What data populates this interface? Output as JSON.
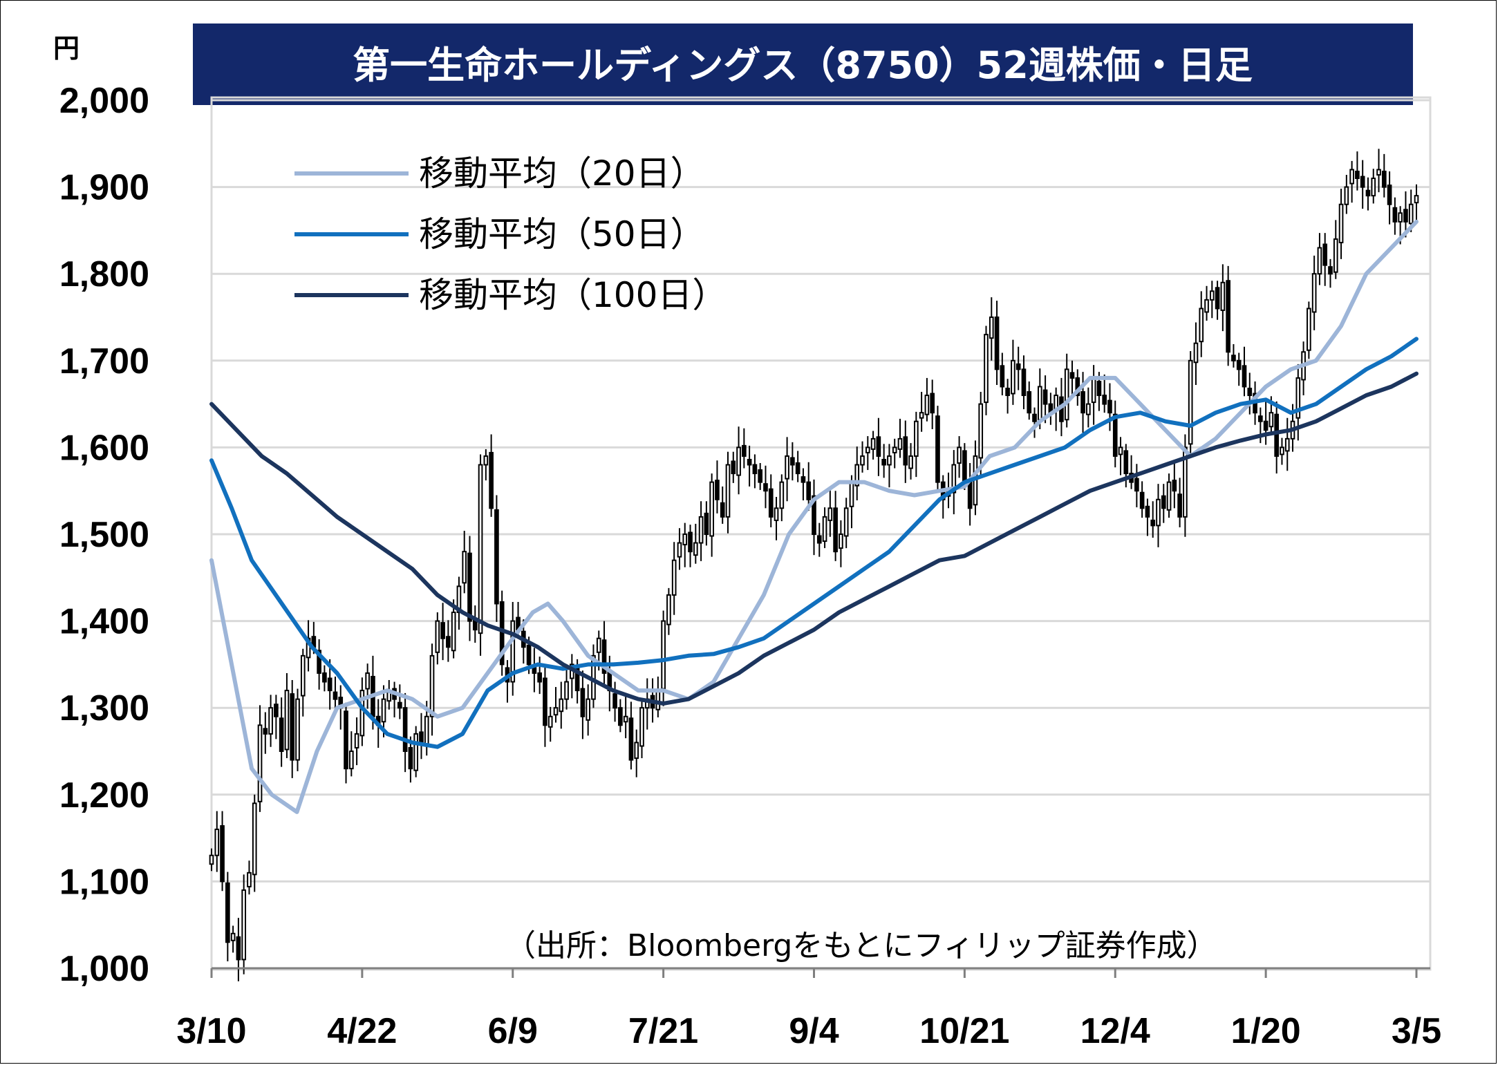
{
  "title": "第一生命ホールディングス（8750）52週株価・日足",
  "unit": "円",
  "source": "（出所：Bloombergをもとにフィリップ証券作成）",
  "colors": {
    "title_bg": "#13286A",
    "ma20": "#9DB5D8",
    "ma50": "#1170BE",
    "ma100": "#1C355E",
    "grid": "#D9D9D9",
    "candle": "#000000"
  },
  "legend": [
    {
      "label": "移動平均（20日）",
      "color": "#9DB5D8"
    },
    {
      "label": "移動平均（50日）",
      "color": "#1170BE"
    },
    {
      "label": "移動平均（100日）",
      "color": "#1C355E"
    }
  ],
  "chart_data": {
    "type": "candlestick",
    "ylim": [
      1000,
      2000
    ],
    "y_ticks": [
      1000,
      1100,
      1200,
      1300,
      1400,
      1500,
      1600,
      1700,
      1800,
      1900,
      2000
    ],
    "y_tick_labels": [
      "1,000",
      "1,100",
      "1,200",
      "1,300",
      "1,400",
      "1,500",
      "1,600",
      "1,700",
      "1,800",
      "1,900",
      "2,000"
    ],
    "x_ticks": [
      0,
      30,
      60,
      90,
      120,
      150,
      180,
      210,
      240
    ],
    "x_tick_labels": [
      "3/10",
      "4/22",
      "6/9",
      "7/21",
      "9/4",
      "10/21",
      "12/4",
      "1/20",
      "3/5"
    ],
    "x_range": [
      0,
      240
    ],
    "close": [
      1130,
      1160,
      1100,
      1030,
      1040,
      1010,
      1090,
      1110,
      1190,
      1280,
      1270,
      1300,
      1290,
      1250,
      1320,
      1240,
      1310,
      1360,
      1380,
      1370,
      1340,
      1330,
      1320,
      1310,
      1300,
      1230,
      1250,
      1270,
      1320,
      1340,
      1290,
      1280,
      1310,
      1320,
      1310,
      1300,
      1250,
      1230,
      1270,
      1260,
      1290,
      1360,
      1400,
      1380,
      1370,
      1410,
      1440,
      1480,
      1400,
      1390,
      1580,
      1590,
      1530,
      1420,
      1350,
      1330,
      1400,
      1390,
      1370,
      1350,
      1340,
      1330,
      1280,
      1290,
      1300,
      1310,
      1330,
      1350,
      1320,
      1290,
      1310,
      1360,
      1380,
      1340,
      1320,
      1300,
      1280,
      1290,
      1240,
      1260,
      1300,
      1310,
      1300,
      1320,
      1400,
      1430,
      1470,
      1490,
      1500,
      1480,
      1490,
      1520,
      1500,
      1560,
      1540,
      1520,
      1580,
      1570,
      1600,
      1590,
      1580,
      1570,
      1560,
      1550,
      1520,
      1530,
      1560,
      1590,
      1580,
      1570,
      1560,
      1540,
      1500,
      1490,
      1520,
      1530,
      1480,
      1500,
      1530,
      1560,
      1580,
      1590,
      1600,
      1610,
      1590,
      1580,
      1590,
      1600,
      1610,
      1580,
      1590,
      1630,
      1640,
      1660,
      1640,
      1560,
      1540,
      1550,
      1580,
      1600,
      1560,
      1530,
      1590,
      1650,
      1730,
      1750,
      1690,
      1670,
      1660,
      1700,
      1690,
      1660,
      1640,
      1630,
      1670,
      1650,
      1640,
      1660,
      1630,
      1690,
      1680,
      1660,
      1640,
      1650,
      1680,
      1660,
      1650,
      1640,
      1590,
      1600,
      1570,
      1560,
      1550,
      1530,
      1520,
      1510,
      1540,
      1530,
      1560,
      1550,
      1520,
      1600,
      1700,
      1720,
      1760,
      1770,
      1780,
      1760,
      1790,
      1710,
      1700,
      1690,
      1670,
      1660,
      1640,
      1630,
      1620,
      1640,
      1590,
      1600,
      1610,
      1630,
      1680,
      1710,
      1760,
      1800,
      1830,
      1810,
      1800,
      1840,
      1880,
      1900,
      1920,
      1910,
      1900,
      1890,
      1910,
      1920,
      1900,
      1880,
      1860,
      1870,
      1860,
      1880,
      1890
    ],
    "series": [
      {
        "name": "移動平均（20日）",
        "points": [
          [
            0,
            1470
          ],
          [
            4,
            1350
          ],
          [
            8,
            1230
          ],
          [
            12,
            1200
          ],
          [
            17,
            1180
          ],
          [
            21,
            1250
          ],
          [
            25,
            1300
          ],
          [
            30,
            1310
          ],
          [
            35,
            1320
          ],
          [
            40,
            1310
          ],
          [
            45,
            1290
          ],
          [
            50,
            1300
          ],
          [
            55,
            1340
          ],
          [
            60,
            1380
          ],
          [
            64,
            1410
          ],
          [
            67,
            1420
          ],
          [
            70,
            1400
          ],
          [
            75,
            1360
          ],
          [
            80,
            1340
          ],
          [
            85,
            1320
          ],
          [
            90,
            1320
          ],
          [
            95,
            1310
          ],
          [
            100,
            1330
          ],
          [
            105,
            1380
          ],
          [
            110,
            1430
          ],
          [
            115,
            1500
          ],
          [
            120,
            1540
          ],
          [
            125,
            1560
          ],
          [
            130,
            1560
          ],
          [
            135,
            1550
          ],
          [
            140,
            1545
          ],
          [
            145,
            1550
          ],
          [
            150,
            1555
          ],
          [
            155,
            1590
          ],
          [
            160,
            1600
          ],
          [
            165,
            1630
          ],
          [
            170,
            1650
          ],
          [
            175,
            1680
          ],
          [
            180,
            1680
          ],
          [
            185,
            1650
          ],
          [
            190,
            1620
          ],
          [
            195,
            1590
          ],
          [
            200,
            1610
          ],
          [
            205,
            1640
          ],
          [
            210,
            1670
          ],
          [
            215,
            1690
          ],
          [
            220,
            1700
          ],
          [
            225,
            1740
          ],
          [
            230,
            1800
          ],
          [
            240,
            1860
          ]
        ]
      },
      {
        "name": "移動平均（50日）",
        "points": [
          [
            0,
            1585
          ],
          [
            4,
            1530
          ],
          [
            8,
            1470
          ],
          [
            14,
            1420
          ],
          [
            20,
            1370
          ],
          [
            25,
            1340
          ],
          [
            30,
            1300
          ],
          [
            35,
            1270
          ],
          [
            40,
            1260
          ],
          [
            45,
            1255
          ],
          [
            50,
            1270
          ],
          [
            55,
            1320
          ],
          [
            60,
            1340
          ],
          [
            65,
            1350
          ],
          [
            70,
            1345
          ],
          [
            75,
            1350
          ],
          [
            80,
            1350
          ],
          [
            85,
            1352
          ],
          [
            90,
            1355
          ],
          [
            95,
            1360
          ],
          [
            100,
            1362
          ],
          [
            105,
            1370
          ],
          [
            110,
            1380
          ],
          [
            115,
            1400
          ],
          [
            120,
            1420
          ],
          [
            125,
            1440
          ],
          [
            130,
            1460
          ],
          [
            135,
            1480
          ],
          [
            140,
            1510
          ],
          [
            145,
            1540
          ],
          [
            150,
            1560
          ],
          [
            155,
            1570
          ],
          [
            160,
            1580
          ],
          [
            165,
            1590
          ],
          [
            170,
            1600
          ],
          [
            175,
            1620
          ],
          [
            180,
            1635
          ],
          [
            185,
            1640
          ],
          [
            190,
            1630
          ],
          [
            195,
            1625
          ],
          [
            200,
            1640
          ],
          [
            205,
            1650
          ],
          [
            210,
            1655
          ],
          [
            215,
            1640
          ],
          [
            220,
            1650
          ],
          [
            225,
            1670
          ],
          [
            230,
            1690
          ],
          [
            235,
            1705
          ],
          [
            240,
            1725
          ]
        ]
      },
      {
        "name": "移動平均（100日）",
        "points": [
          [
            0,
            1650
          ],
          [
            5,
            1620
          ],
          [
            10,
            1590
          ],
          [
            15,
            1570
          ],
          [
            20,
            1545
          ],
          [
            25,
            1520
          ],
          [
            30,
            1500
          ],
          [
            35,
            1480
          ],
          [
            40,
            1460
          ],
          [
            45,
            1430
          ],
          [
            50,
            1410
          ],
          [
            55,
            1395
          ],
          [
            60,
            1385
          ],
          [
            65,
            1370
          ],
          [
            70,
            1350
          ],
          [
            75,
            1335
          ],
          [
            80,
            1320
          ],
          [
            85,
            1310
          ],
          [
            90,
            1305
          ],
          [
            95,
            1310
          ],
          [
            100,
            1325
          ],
          [
            105,
            1340
          ],
          [
            110,
            1360
          ],
          [
            115,
            1375
          ],
          [
            120,
            1390
          ],
          [
            125,
            1410
          ],
          [
            130,
            1425
          ],
          [
            135,
            1440
          ],
          [
            140,
            1455
          ],
          [
            145,
            1470
          ],
          [
            150,
            1475
          ],
          [
            155,
            1490
          ],
          [
            160,
            1505
          ],
          [
            165,
            1520
          ],
          [
            170,
            1535
          ],
          [
            175,
            1550
          ],
          [
            180,
            1560
          ],
          [
            185,
            1570
          ],
          [
            190,
            1580
          ],
          [
            195,
            1590
          ],
          [
            200,
            1600
          ],
          [
            205,
            1608
          ],
          [
            210,
            1615
          ],
          [
            215,
            1620
          ],
          [
            220,
            1630
          ],
          [
            225,
            1645
          ],
          [
            230,
            1660
          ],
          [
            235,
            1670
          ],
          [
            240,
            1685
          ]
        ]
      }
    ]
  }
}
